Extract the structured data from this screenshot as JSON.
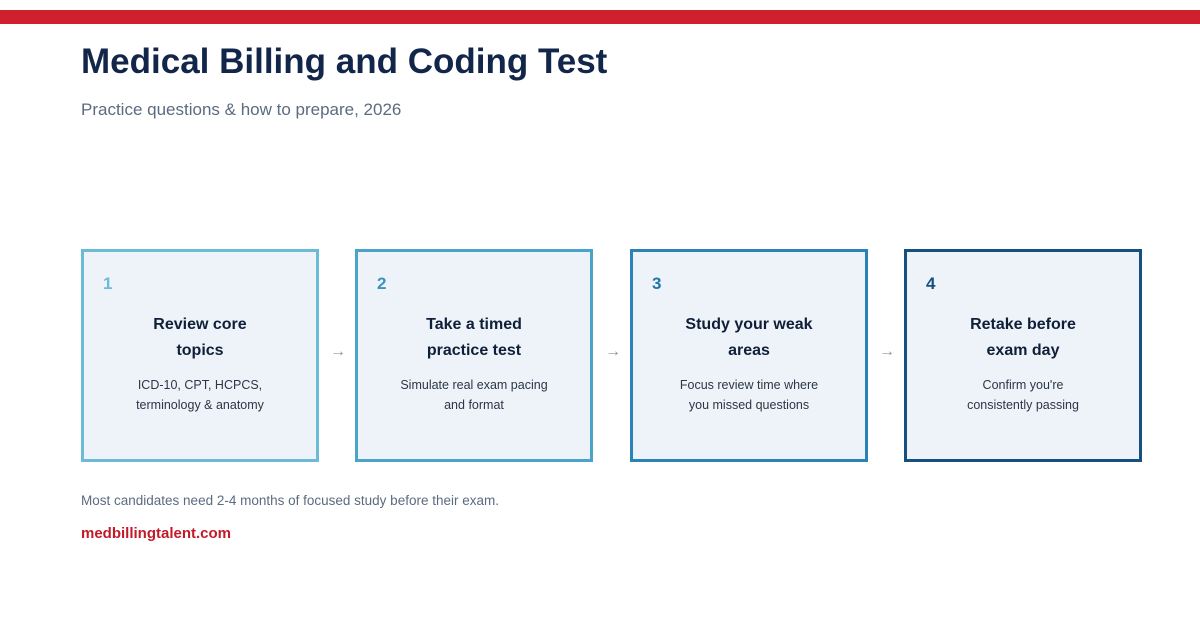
{
  "header": {
    "title": "Medical Billing and Coding Test",
    "subtitle": "Practice questions & how to prepare, 2026"
  },
  "steps": [
    {
      "number": "1",
      "title_lines": [
        "Review core",
        "topics"
      ],
      "desc_lines": [
        "ICD-10, CPT, HCPCS,",
        "terminology & anatomy"
      ],
      "border_color": "#6bbbd6",
      "number_color": "#6bbbd6"
    },
    {
      "number": "2",
      "title_lines": [
        "Take a timed",
        "practice test"
      ],
      "desc_lines": [
        "Simulate real exam pacing",
        "and format"
      ],
      "border_color": "#4aa3c9",
      "number_color": "#3b92bd"
    },
    {
      "number": "3",
      "title_lines": [
        "Study your weak",
        "areas"
      ],
      "desc_lines": [
        "Focus review time where",
        "you missed questions"
      ],
      "border_color": "#2a82b5",
      "number_color": "#1f76aa"
    },
    {
      "number": "4",
      "title_lines": [
        "Retake before",
        "exam day"
      ],
      "desc_lines": [
        "Confirm you're",
        "consistently passing"
      ],
      "border_color": "#16507e",
      "number_color": "#16507e"
    }
  ],
  "arrow_glyph": "→",
  "footer": {
    "note": "Most candidates need 2-4 months of focused study before their exam.",
    "site": "medbillingtalent.com"
  },
  "colors": {
    "accent_red": "#d0202e",
    "title_navy": "#12264a",
    "card_background": "#eef3f9"
  }
}
